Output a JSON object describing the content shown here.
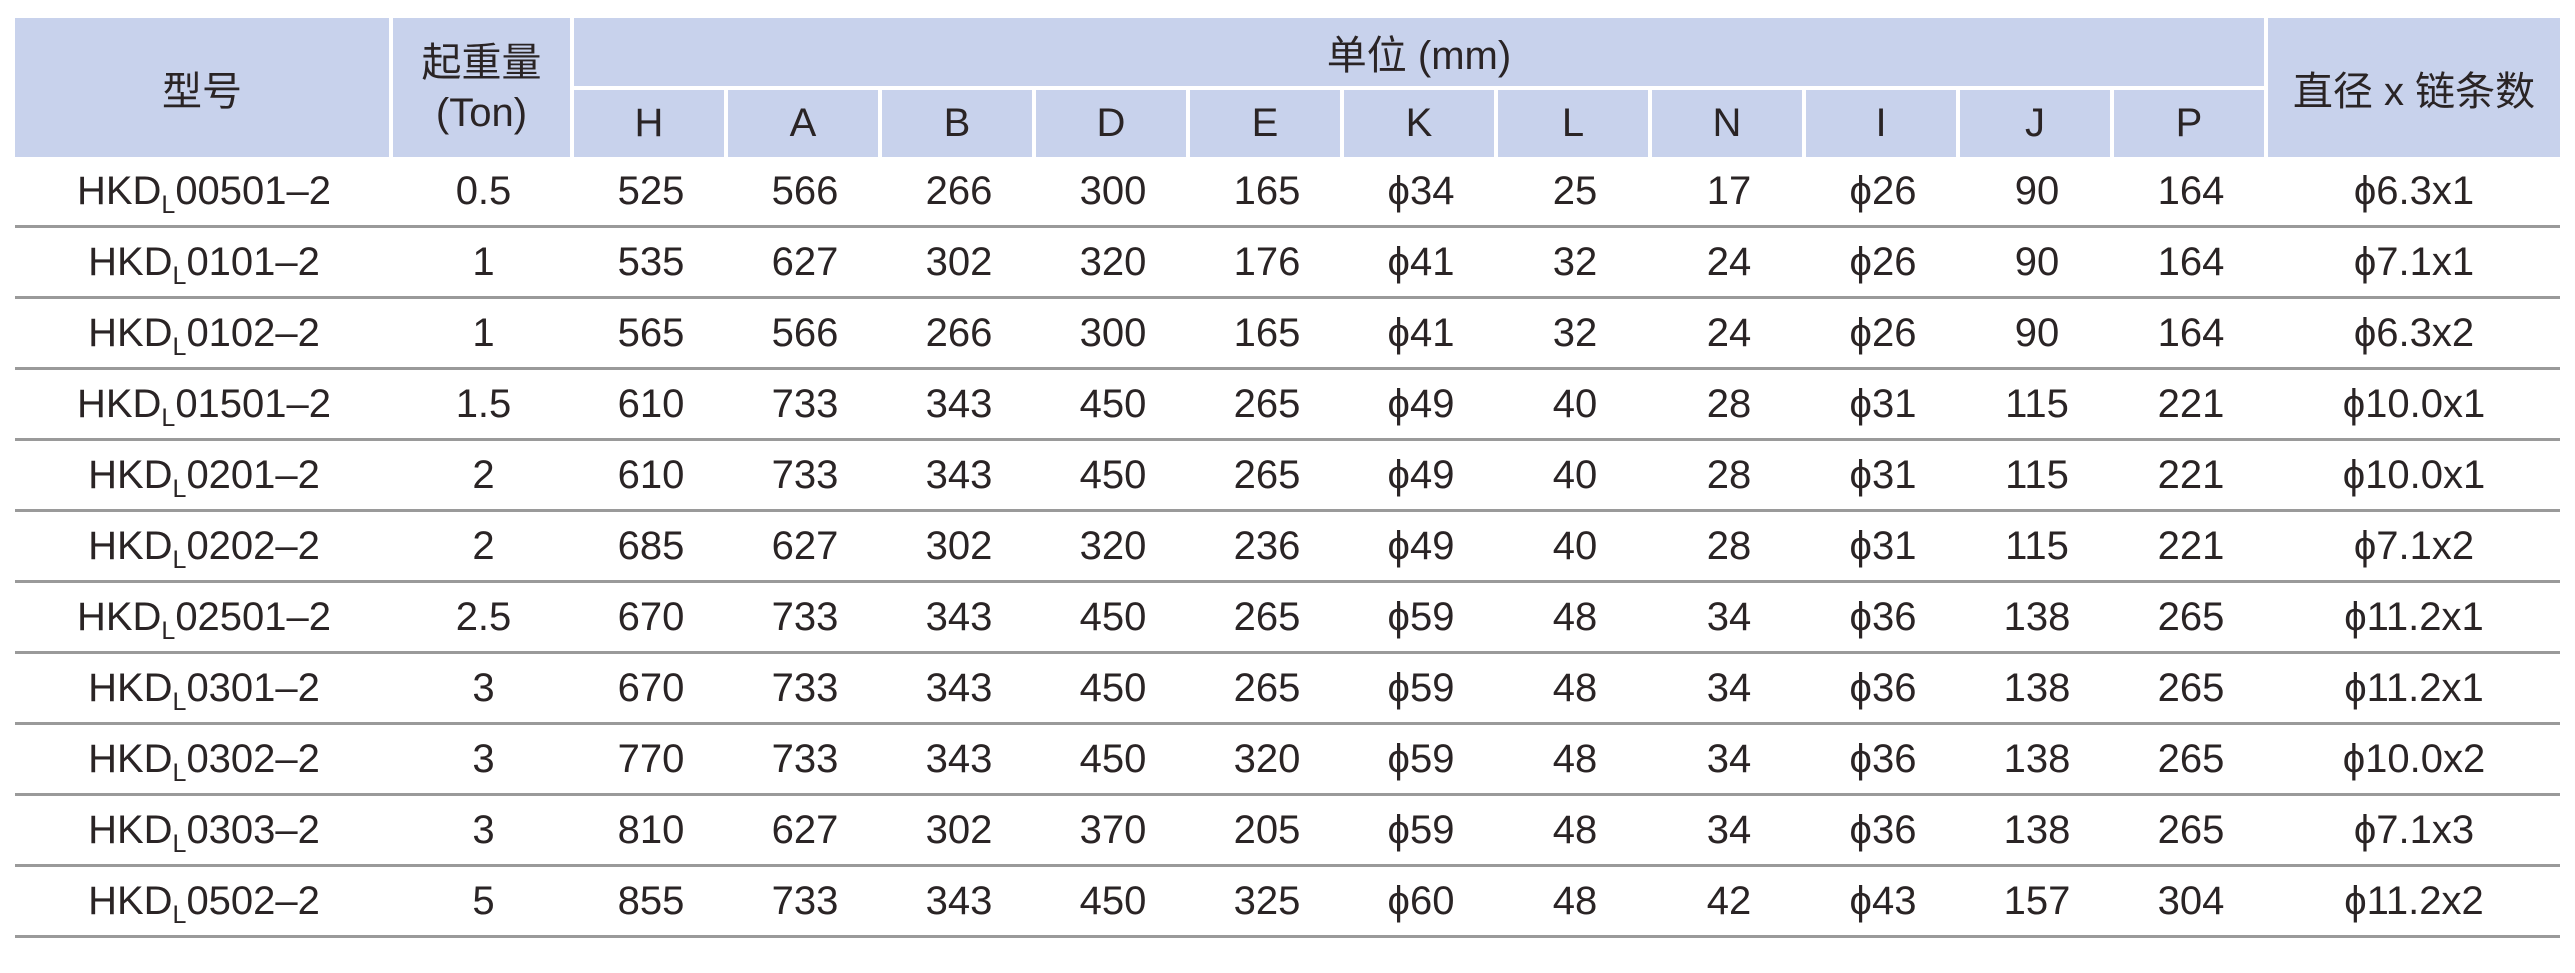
{
  "header": {
    "model": "型号",
    "capacity_line1": "起重量",
    "capacity_line2": "(Ton)",
    "unit": "单位 (mm)",
    "dims": [
      "H",
      "A",
      "B",
      "D",
      "E",
      "K",
      "L",
      "N",
      "I",
      "J",
      "P"
    ],
    "chain": "直径 x 链条数"
  },
  "colors": {
    "header_bg": "#c8d2ec",
    "row_separator": "#9a9a9a",
    "text": "#2a2425"
  },
  "rows": [
    {
      "model": {
        "pre": "HKD",
        "sub": "L",
        "suf": "00501–2"
      },
      "ton": "0.5",
      "dims": [
        "525",
        "566",
        "266",
        "300",
        "165",
        "ϕ34",
        "25",
        "17",
        "ϕ26",
        "90",
        "164"
      ],
      "chain": "ϕ6.3x1"
    },
    {
      "model": {
        "pre": "HKD",
        "sub": "L",
        "suf": "0101–2"
      },
      "ton": "1",
      "dims": [
        "535",
        "627",
        "302",
        "320",
        "176",
        "ϕ41",
        "32",
        "24",
        "ϕ26",
        "90",
        "164"
      ],
      "chain": "ϕ7.1x1"
    },
    {
      "model": {
        "pre": "HKD",
        "sub": "L",
        "suf": "0102–2"
      },
      "ton": "1",
      "dims": [
        "565",
        "566",
        "266",
        "300",
        "165",
        "ϕ41",
        "32",
        "24",
        "ϕ26",
        "90",
        "164"
      ],
      "chain": "ϕ6.3x2"
    },
    {
      "model": {
        "pre": "HKD",
        "sub": "L",
        "suf": "01501–2"
      },
      "ton": "1.5",
      "dims": [
        "610",
        "733",
        "343",
        "450",
        "265",
        "ϕ49",
        "40",
        "28",
        "ϕ31",
        "115",
        "221"
      ],
      "chain": "ϕ10.0x1"
    },
    {
      "model": {
        "pre": "HKD",
        "sub": "L",
        "suf": "0201–2"
      },
      "ton": "2",
      "dims": [
        "610",
        "733",
        "343",
        "450",
        "265",
        "ϕ49",
        "40",
        "28",
        "ϕ31",
        "115",
        "221"
      ],
      "chain": "ϕ10.0x1"
    },
    {
      "model": {
        "pre": "HKD",
        "sub": "L",
        "suf": "0202–2"
      },
      "ton": "2",
      "dims": [
        "685",
        "627",
        "302",
        "320",
        "236",
        "ϕ49",
        "40",
        "28",
        "ϕ31",
        "115",
        "221"
      ],
      "chain": "ϕ7.1x2"
    },
    {
      "model": {
        "pre": "HKD",
        "sub": "L",
        "suf": "02501–2"
      },
      "ton": "2.5",
      "dims": [
        "670",
        "733",
        "343",
        "450",
        "265",
        "ϕ59",
        "48",
        "34",
        "ϕ36",
        "138",
        "265"
      ],
      "chain": "ϕ11.2x1"
    },
    {
      "model": {
        "pre": "HKD",
        "sub": "L",
        "suf": "0301–2"
      },
      "ton": "3",
      "dims": [
        "670",
        "733",
        "343",
        "450",
        "265",
        "ϕ59",
        "48",
        "34",
        "ϕ36",
        "138",
        "265"
      ],
      "chain": "ϕ11.2x1"
    },
    {
      "model": {
        "pre": "HKD",
        "sub": "L",
        "suf": "0302–2"
      },
      "ton": "3",
      "dims": [
        "770",
        "733",
        "343",
        "450",
        "320",
        "ϕ59",
        "48",
        "34",
        "ϕ36",
        "138",
        "265"
      ],
      "chain": "ϕ10.0x2"
    },
    {
      "model": {
        "pre": "HKD",
        "sub": "L",
        "suf": "0303–2"
      },
      "ton": "3",
      "dims": [
        "810",
        "627",
        "302",
        "370",
        "205",
        "ϕ59",
        "48",
        "34",
        "ϕ36",
        "138",
        "265"
      ],
      "chain": "ϕ7.1x3"
    },
    {
      "model": {
        "pre": "HKD",
        "sub": "L",
        "suf": "0502–2"
      },
      "ton": "5",
      "dims": [
        "855",
        "733",
        "343",
        "450",
        "325",
        "ϕ60",
        "48",
        "42",
        "ϕ43",
        "157",
        "304"
      ],
      "chain": "ϕ11.2x2"
    }
  ]
}
